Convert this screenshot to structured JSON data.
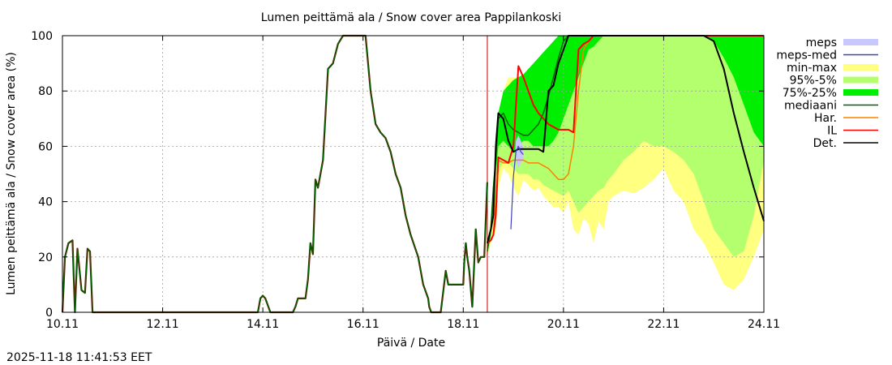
{
  "chart_data": {
    "type": "area",
    "title": "Lumen peittämä ala / Snow cover area Pappilankoski",
    "xlabel": "Päivä / Date",
    "ylabel": "Lumen peittämä ala / Snow cover area (%)",
    "timestamp": "2025-11-18 11:41:53 EET",
    "x_unit": "days since 10.11",
    "xlim": [
      0,
      14
    ],
    "ylim": [
      0,
      100
    ],
    "x_ticks": [
      {
        "value": 0,
        "label": "10.11"
      },
      {
        "value": 2,
        "label": "12.11"
      },
      {
        "value": 4,
        "label": "14.11"
      },
      {
        "value": 6,
        "label": "16.11"
      },
      {
        "value": 8,
        "label": "18.11"
      },
      {
        "value": 10,
        "label": "20.11"
      },
      {
        "value": 12,
        "label": "22.11"
      },
      {
        "value": 14,
        "label": "24.11"
      }
    ],
    "y_ticks": [
      0,
      20,
      40,
      60,
      80,
      100
    ],
    "grid": true,
    "legend_position": "right",
    "forecast_start": 8.48,
    "colors": {
      "meps": "#c8c8ff",
      "meps_med": "#4040c0",
      "minmax": "#ffff80",
      "p95_5": "#b4ff6e",
      "p75_25": "#00ee00",
      "median": "#006400",
      "har": "#ff8000",
      "il": "#ff0000",
      "det": "#000000",
      "vline": "#c00000"
    },
    "legend": [
      {
        "label": "meps",
        "kind": "band",
        "color": "#c8c8ff"
      },
      {
        "label": "meps-med",
        "kind": "line",
        "color": "#4040c0"
      },
      {
        "label": "min-max",
        "kind": "band",
        "color": "#ffff80"
      },
      {
        "label": "95%-5%",
        "kind": "band",
        "color": "#b4ff6e"
      },
      {
        "label": "75%-25%",
        "kind": "band",
        "color": "#00ee00"
      },
      {
        "label": "mediaani",
        "kind": "line",
        "color": "#006400"
      },
      {
        "label": "Har.",
        "kind": "line",
        "color": "#ff8000"
      },
      {
        "label": "IL",
        "kind": "line",
        "color": "#ff0000"
      },
      {
        "label": "Det.",
        "kind": "line",
        "color": "#000000"
      }
    ],
    "history": {
      "x": [
        0,
        0.05,
        0.12,
        0.2,
        0.25,
        0.3,
        0.38,
        0.45,
        0.5,
        0.55,
        0.6,
        0.65,
        3.55,
        3.9,
        3.95,
        4.0,
        4.05,
        4.15,
        4.25,
        4.35,
        4.5,
        4.6,
        4.65,
        4.7,
        4.75,
        4.8,
        4.85,
        4.9,
        4.95,
        5.0,
        5.05,
        5.1,
        5.2,
        5.3,
        5.4,
        5.5,
        5.6,
        5.65,
        5.7,
        5.75,
        5.8,
        5.85,
        5.95,
        6.05,
        6.15,
        6.25,
        6.35,
        6.45,
        6.55,
        6.65,
        6.75,
        6.85,
        6.95,
        7.1,
        7.2,
        7.3,
        7.32,
        7.36,
        7.45,
        7.55,
        7.65,
        7.7,
        7.72,
        7.75,
        7.78,
        7.8,
        7.85,
        7.95,
        8.0,
        8.02,
        8.05,
        8.08,
        8.12,
        8.18,
        8.25,
        8.3,
        8.35,
        8.42,
        8.48
      ],
      "y": [
        0,
        20,
        25,
        26,
        0,
        23,
        8,
        7,
        23,
        22,
        0,
        0,
        0,
        0,
        5,
        6,
        5,
        0,
        0,
        0,
        0,
        0,
        2,
        5,
        5,
        5,
        5,
        12,
        25,
        21,
        48,
        45,
        55,
        88,
        90,
        97,
        100,
        100,
        100,
        100,
        100,
        100,
        100,
        100,
        80,
        68,
        65,
        63,
        58,
        50,
        45,
        35,
        28,
        20,
        10,
        5,
        2,
        0,
        0,
        0,
        15,
        10,
        10,
        10,
        10,
        10,
        10,
        10,
        10,
        18,
        25,
        20,
        15,
        2,
        30,
        18,
        20,
        20,
        47
      ]
    },
    "forecast": {
      "x": [
        8.48,
        8.55,
        8.6,
        8.65,
        8.7,
        8.8,
        8.9,
        9.0,
        9.1,
        9.2,
        9.3,
        9.4,
        9.5,
        9.6,
        9.7,
        9.8,
        9.9,
        10.0,
        10.1,
        10.2,
        10.3,
        10.4,
        10.5,
        10.6,
        10.7,
        10.8,
        10.9,
        11.0,
        11.2,
        11.4,
        11.6,
        11.8,
        12.0,
        12.2,
        12.4,
        12.6,
        12.8,
        13.0,
        13.2,
        13.4,
        13.6,
        13.8,
        14.0
      ],
      "minmax_lo": [
        20,
        25,
        30,
        28,
        45,
        52,
        50,
        45,
        42,
        48,
        46,
        44,
        45,
        42,
        40,
        38,
        38,
        36,
        40,
        30,
        28,
        34,
        32,
        25,
        33,
        30,
        40,
        42,
        44,
        43,
        45,
        48,
        52,
        44,
        40,
        30,
        25,
        18,
        10,
        8,
        12,
        20,
        30
      ],
      "minmax_hi": [
        25,
        35,
        45,
        60,
        72,
        80,
        85,
        85,
        85,
        86,
        86,
        85,
        85,
        87,
        88,
        88,
        88,
        90,
        94,
        96,
        100,
        100,
        100,
        100,
        100,
        100,
        100,
        100,
        100,
        100,
        100,
        100,
        100,
        100,
        100,
        100,
        100,
        100,
        100,
        100,
        100,
        100,
        100
      ],
      "p95_lo": [
        20,
        26,
        32,
        35,
        50,
        55,
        54,
        52,
        50,
        50,
        50,
        48,
        48,
        46,
        45,
        44,
        43,
        42,
        44,
        40,
        36,
        38,
        40,
        42,
        44,
        45,
        48,
        50,
        55,
        58,
        62,
        60,
        60,
        58,
        55,
        50,
        40,
        30,
        25,
        20,
        22,
        35,
        55
      ],
      "p95_hi": [
        24,
        32,
        42,
        55,
        68,
        76,
        80,
        82,
        84,
        85,
        86,
        86,
        88,
        90,
        92,
        94,
        96,
        98,
        100,
        100,
        100,
        100,
        100,
        100,
        100,
        100,
        100,
        100,
        100,
        100,
        100,
        100,
        100,
        100,
        100,
        100,
        100,
        100,
        100,
        100,
        100,
        100,
        100
      ],
      "p75_lo": [
        22,
        28,
        40,
        50,
        60,
        62,
        60,
        58,
        60,
        62,
        62,
        60,
        60,
        60,
        60,
        62,
        65,
        70,
        75,
        80,
        85,
        90,
        95,
        96,
        98,
        100,
        100,
        100,
        100,
        100,
        100,
        100,
        100,
        100,
        100,
        100,
        100,
        98,
        92,
        85,
        75,
        65,
        60
      ],
      "p75_hi": [
        24,
        30,
        48,
        58,
        72,
        80,
        82,
        84,
        85,
        86,
        88,
        90,
        92,
        94,
        96,
        98,
        100,
        100,
        100,
        100,
        100,
        100,
        100,
        100,
        100,
        100,
        100,
        100,
        100,
        100,
        100,
        100,
        100,
        100,
        100,
        100,
        100,
        100,
        100,
        100,
        100,
        100,
        100
      ],
      "median": [
        22,
        30,
        45,
        55,
        70,
        72,
        68,
        66,
        65,
        64,
        64,
        66,
        68,
        72,
        78,
        85,
        92,
        98,
        100,
        100,
        100,
        100,
        100,
        100,
        100,
        100,
        100,
        100,
        100,
        100,
        100,
        100,
        100,
        100,
        100,
        100,
        100,
        100,
        100,
        100,
        100,
        100,
        100
      ],
      "har": [
        25,
        26,
        28,
        40,
        55,
        54,
        54,
        55,
        55,
        55,
        54,
        54,
        54,
        53,
        52,
        50,
        48,
        48,
        50,
        60,
        80,
        95,
        98,
        100,
        100,
        100,
        100,
        100,
        100,
        100,
        100,
        100,
        100,
        100,
        100,
        100,
        100,
        100,
        100,
        100,
        100,
        100,
        100
      ],
      "il": [
        25,
        26,
        28,
        35,
        56,
        55,
        54,
        60,
        89,
        85,
        80,
        75,
        72,
        70,
        68,
        67,
        66,
        66,
        66,
        65,
        95,
        97,
        98,
        100,
        100,
        100,
        100,
        100,
        100,
        100,
        100,
        100,
        100,
        100,
        100,
        100,
        100,
        100,
        100,
        100,
        100,
        100,
        100
      ],
      "det": [
        25,
        30,
        35,
        60,
        72,
        70,
        62,
        58,
        59,
        59,
        59,
        59,
        59,
        58,
        80,
        82,
        90,
        95,
        100,
        100,
        100,
        100,
        100,
        100,
        100,
        100,
        100,
        100,
        100,
        100,
        100,
        100,
        100,
        100,
        100,
        100,
        100,
        98,
        88,
        72,
        58,
        45,
        33
      ]
    },
    "meps": {
      "x": [
        8.95,
        9.0,
        9.05,
        9.1,
        9.15,
        9.2
      ],
      "lo": [
        30,
        48,
        55,
        52,
        54,
        55
      ],
      "hi": [
        30,
        50,
        62,
        64,
        62,
        60
      ],
      "med": [
        30,
        49,
        58,
        60,
        58,
        57
      ]
    }
  }
}
